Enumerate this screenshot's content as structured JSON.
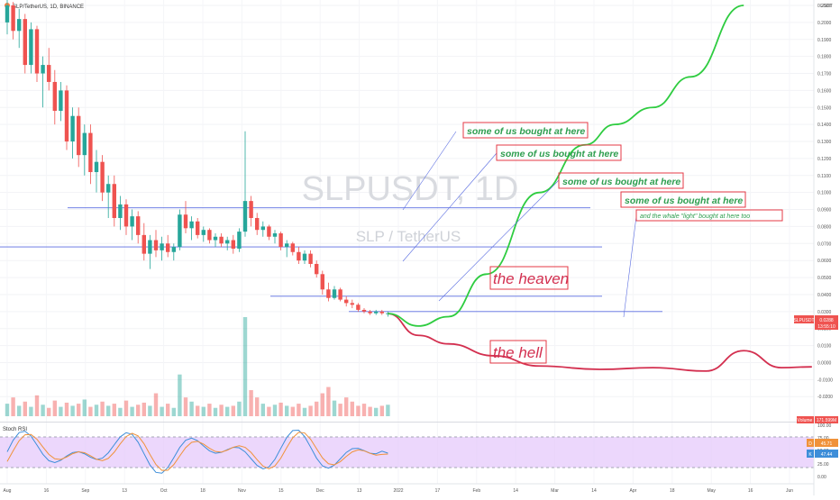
{
  "header": {
    "symbol_line": "SLP/TetherUS, 1D, BINANCE"
  },
  "watermark": {
    "ticker": "SLPUSDT, 1D",
    "pair": "SLP / TetherUS"
  },
  "price_axis": {
    "unit": "USDT",
    "ticks": [
      "0.2100",
      "0.2000",
      "0.1900",
      "0.1800",
      "0.1700",
      "0.1600",
      "0.1500",
      "0.1400",
      "0.1300",
      "0.1200",
      "0.1100",
      "0.1000",
      "0.0900",
      "0.0800",
      "0.0700",
      "0.0600",
      "0.0500",
      "0.0400",
      "0.0300",
      "0.0200",
      "0.0100",
      "0.0000",
      "-0.0100",
      "-0.0200"
    ],
    "last_price_label": "SLPUSDT",
    "last_price": "0.0288",
    "countdown": "13:55:10",
    "volume_label": "Volume",
    "volume_value": "171.599M"
  },
  "stoch_rsi": {
    "title": "Stoch RSI",
    "levels": [
      "100.00",
      "75.00",
      "50.00",
      "25.00",
      "0.00"
    ],
    "k_label": "K",
    "k_value": "47.44",
    "d_label": "D",
    "d_value": "45.71"
  },
  "time_axis": {
    "labels": [
      "Aug",
      "16",
      "Sep",
      "13",
      "Oct",
      "18",
      "Nov",
      "15",
      "Dec",
      "13",
      "2022",
      "17",
      "Feb",
      "14",
      "Mar",
      "14",
      "Apr",
      "18",
      "May",
      "16",
      "Jun"
    ]
  },
  "annotations": {
    "bought_1": "some of us bought at here",
    "bought_2": "some of us bought at here",
    "bought_3": "some of us bought at here",
    "bought_4": "some of us bought at here",
    "whale_note": "and the whale \"light\" bought at here too",
    "heaven": "the heaven",
    "hell": "the hell"
  },
  "colors": {
    "bull": "#26a69a",
    "bear": "#ef5350",
    "heaven_curve": "#2ecc40",
    "hell_curve": "#d32f4f",
    "annotation_text_green": "#2e9e4f",
    "annotation_border": "#e53946",
    "level_line": "#5b6ee1",
    "rsi_band": "#e6c9fb",
    "rsi_k": "#3d8ed9",
    "rsi_d": "#f0923a"
  },
  "chart_data": {
    "type": "candlestick",
    "symbol": "SLPUSDT",
    "interval": "1D",
    "exchange": "BINANCE",
    "ylim": [
      -0.025,
      0.215
    ],
    "ohlc": [
      [
        0.2,
        0.215,
        0.193,
        0.21
      ],
      [
        0.21,
        0.212,
        0.19,
        0.195
      ],
      [
        0.195,
        0.208,
        0.185,
        0.202
      ],
      [
        0.202,
        0.205,
        0.17,
        0.175
      ],
      [
        0.175,
        0.2,
        0.17,
        0.196
      ],
      [
        0.196,
        0.198,
        0.165,
        0.17
      ],
      [
        0.17,
        0.18,
        0.15,
        0.175
      ],
      [
        0.175,
        0.185,
        0.16,
        0.165
      ],
      [
        0.165,
        0.172,
        0.14,
        0.148
      ],
      [
        0.148,
        0.165,
        0.142,
        0.16
      ],
      [
        0.16,
        0.163,
        0.125,
        0.13
      ],
      [
        0.13,
        0.15,
        0.12,
        0.145
      ],
      [
        0.145,
        0.15,
        0.115,
        0.122
      ],
      [
        0.122,
        0.14,
        0.11,
        0.135
      ],
      [
        0.135,
        0.14,
        0.105,
        0.112
      ],
      [
        0.112,
        0.125,
        0.1,
        0.118
      ],
      [
        0.118,
        0.122,
        0.095,
        0.1
      ],
      [
        0.1,
        0.11,
        0.085,
        0.105
      ],
      [
        0.105,
        0.11,
        0.08,
        0.085
      ],
      [
        0.085,
        0.098,
        0.078,
        0.093
      ],
      [
        0.093,
        0.096,
        0.075,
        0.08
      ],
      [
        0.08,
        0.09,
        0.072,
        0.086
      ],
      [
        0.086,
        0.089,
        0.07,
        0.075
      ],
      [
        0.075,
        0.082,
        0.06,
        0.064
      ],
      [
        0.064,
        0.075,
        0.055,
        0.072
      ],
      [
        0.072,
        0.078,
        0.062,
        0.066
      ],
      [
        0.066,
        0.074,
        0.06,
        0.07
      ],
      [
        0.07,
        0.075,
        0.062,
        0.065
      ],
      [
        0.065,
        0.07,
        0.06,
        0.068
      ],
      [
        0.068,
        0.09,
        0.066,
        0.087
      ],
      [
        0.087,
        0.095,
        0.076,
        0.079
      ],
      [
        0.079,
        0.086,
        0.072,
        0.083
      ],
      [
        0.083,
        0.085,
        0.073,
        0.075
      ],
      [
        0.075,
        0.08,
        0.071,
        0.078
      ],
      [
        0.078,
        0.079,
        0.07,
        0.072
      ],
      [
        0.072,
        0.076,
        0.068,
        0.074
      ],
      [
        0.074,
        0.076,
        0.068,
        0.07
      ],
      [
        0.07,
        0.074,
        0.066,
        0.072
      ],
      [
        0.072,
        0.075,
        0.064,
        0.067
      ],
      [
        0.067,
        0.079,
        0.065,
        0.077
      ],
      [
        0.077,
        0.136,
        0.074,
        0.095
      ],
      [
        0.095,
        0.098,
        0.08,
        0.085
      ],
      [
        0.085,
        0.088,
        0.075,
        0.078
      ],
      [
        0.078,
        0.083,
        0.074,
        0.08
      ],
      [
        0.08,
        0.081,
        0.072,
        0.074
      ],
      [
        0.074,
        0.078,
        0.07,
        0.076
      ],
      [
        0.076,
        0.077,
        0.066,
        0.068
      ],
      [
        0.068,
        0.072,
        0.062,
        0.07
      ],
      [
        0.07,
        0.071,
        0.063,
        0.065
      ],
      [
        0.065,
        0.068,
        0.058,
        0.06
      ],
      [
        0.06,
        0.066,
        0.058,
        0.064
      ],
      [
        0.064,
        0.066,
        0.056,
        0.058
      ],
      [
        0.058,
        0.06,
        0.05,
        0.052
      ],
      [
        0.052,
        0.054,
        0.04,
        0.043
      ],
      [
        0.043,
        0.047,
        0.036,
        0.038
      ],
      [
        0.038,
        0.045,
        0.037,
        0.043
      ],
      [
        0.043,
        0.044,
        0.036,
        0.037
      ],
      [
        0.037,
        0.039,
        0.033,
        0.035
      ],
      [
        0.035,
        0.037,
        0.032,
        0.034
      ],
      [
        0.034,
        0.035,
        0.03,
        0.031
      ],
      [
        0.031,
        0.032,
        0.029,
        0.03
      ],
      [
        0.03,
        0.031,
        0.028,
        0.029
      ],
      [
        0.029,
        0.031,
        0.028,
        0.03
      ],
      [
        0.03,
        0.031,
        0.028,
        0.029
      ],
      [
        0.029,
        0.03,
        0.027,
        0.029
      ]
    ],
    "volume": [
      12,
      18,
      10,
      14,
      9,
      20,
      11,
      8,
      15,
      9,
      13,
      10,
      12,
      16,
      9,
      11,
      14,
      10,
      12,
      8,
      15,
      9,
      11,
      13,
      10,
      22,
      9,
      12,
      8,
      40,
      18,
      14,
      10,
      9,
      12,
      8,
      11,
      9,
      10,
      14,
      95,
      25,
      18,
      12,
      9,
      11,
      13,
      10,
      9,
      12,
      8,
      10,
      14,
      22,
      28,
      15,
      12,
      18,
      14,
      10,
      12,
      9,
      8,
      10,
      11
    ],
    "projections": {
      "heaven": [
        [
          0,
          0.0288
        ],
        [
          4,
          0.0215
        ],
        [
          8,
          0.027
        ],
        [
          13,
          0.052
        ],
        [
          20,
          0.1
        ],
        [
          26,
          0.128
        ],
        [
          30,
          0.14
        ],
        [
          35,
          0.15
        ],
        [
          40,
          0.168
        ],
        [
          47,
          0.21
        ]
      ],
      "hell": [
        [
          0,
          0.0288
        ],
        [
          4,
          0.016
        ],
        [
          8,
          0.011
        ],
        [
          14,
          0.004
        ],
        [
          20,
          -0.002
        ],
        [
          28,
          -0.004
        ],
        [
          35,
          -0.003
        ],
        [
          42,
          -0.005
        ],
        [
          47,
          0.007
        ],
        [
          52,
          -0.003
        ],
        [
          56,
          -0.0025
        ]
      ]
    },
    "horizontal_levels": [
      0.091,
      0.068,
      0.039,
      0.03
    ],
    "stoch_rsi": {
      "k_last": 47.44,
      "d_last": 45.71,
      "bands": [
        20,
        80
      ]
    }
  }
}
